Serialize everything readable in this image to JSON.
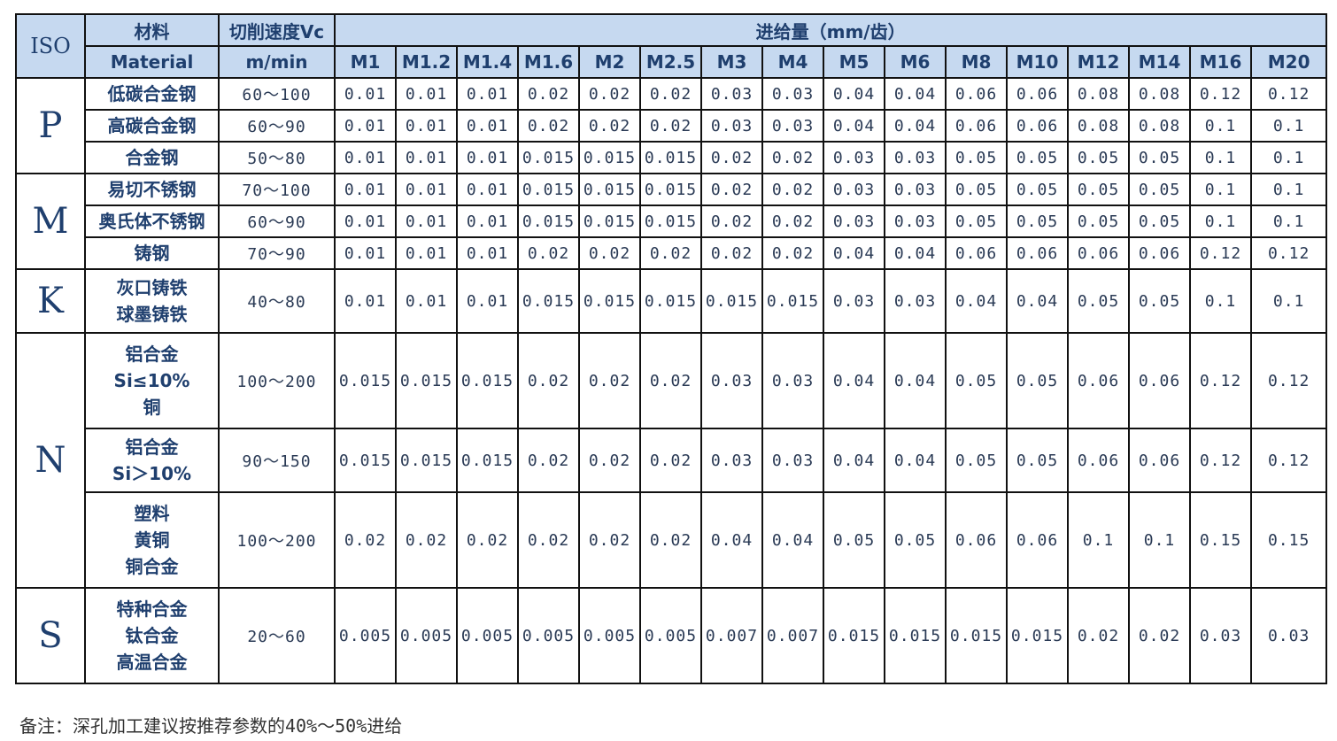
{
  "header": {
    "iso": "ISO",
    "material": [
      "材料",
      "Material"
    ],
    "vc": [
      "切削速度Vc",
      "m/min"
    ],
    "feed": "进给量（mm/齿）",
    "sizes": [
      "M1",
      "M1.2",
      "M1.4",
      "M1.6",
      "M2",
      "M2.5",
      "M3",
      "M4",
      "M5",
      "M6",
      "M8",
      "M10",
      "M12",
      "M14",
      "M16",
      "M20"
    ]
  },
  "groups": [
    {
      "iso": "P",
      "rows": [
        {
          "material": [
            "低碳合金钢"
          ],
          "vc": "60～100",
          "values": [
            0.01,
            0.01,
            0.01,
            0.02,
            0.02,
            0.02,
            0.03,
            0.03,
            0.04,
            0.04,
            0.06,
            0.06,
            0.08,
            0.08,
            0.12,
            0.12
          ]
        },
        {
          "material": [
            "高碳合金钢"
          ],
          "vc": "60～90",
          "values": [
            0.01,
            0.01,
            0.01,
            0.02,
            0.02,
            0.02,
            0.03,
            0.03,
            0.04,
            0.04,
            0.06,
            0.06,
            0.08,
            0.08,
            0.1,
            0.1
          ]
        },
        {
          "material": [
            "合金钢"
          ],
          "vc": "50～80",
          "values": [
            0.01,
            0.01,
            0.01,
            0.015,
            0.015,
            0.015,
            0.02,
            0.02,
            0.03,
            0.03,
            0.05,
            0.05,
            0.05,
            0.05,
            0.1,
            0.1
          ]
        }
      ]
    },
    {
      "iso": "M",
      "rows": [
        {
          "material": [
            "易切不锈钢"
          ],
          "vc": "70～100",
          "values": [
            0.01,
            0.01,
            0.01,
            0.015,
            0.015,
            0.015,
            0.02,
            0.02,
            0.03,
            0.03,
            0.05,
            0.05,
            0.05,
            0.05,
            0.1,
            0.1
          ]
        },
        {
          "material": [
            "奥氏体不锈钢"
          ],
          "vc": "60～90",
          "values": [
            0.01,
            0.01,
            0.01,
            0.015,
            0.015,
            0.015,
            0.02,
            0.02,
            0.03,
            0.03,
            0.05,
            0.05,
            0.05,
            0.05,
            0.1,
            0.1
          ]
        },
        {
          "material": [
            "铸钢"
          ],
          "vc": "70～90",
          "values": [
            0.01,
            0.01,
            0.01,
            0.02,
            0.02,
            0.02,
            0.02,
            0.02,
            0.04,
            0.04,
            0.06,
            0.06,
            0.06,
            0.06,
            0.12,
            0.12
          ]
        }
      ]
    },
    {
      "iso": "K",
      "rows": [
        {
          "material": [
            "灰口铸铁",
            "球墨铸铁"
          ],
          "vc": "40～80",
          "values": [
            0.01,
            0.01,
            0.01,
            0.015,
            0.015,
            0.015,
            0.015,
            0.015,
            0.03,
            0.03,
            0.04,
            0.04,
            0.05,
            0.05,
            0.1,
            0.1
          ]
        }
      ]
    },
    {
      "iso": "N",
      "rows": [
        {
          "material": [
            "铝合金",
            "Si≤10%",
            "铜"
          ],
          "vc": "100～200",
          "values": [
            0.015,
            0.015,
            0.015,
            0.02,
            0.02,
            0.02,
            0.03,
            0.03,
            0.04,
            0.04,
            0.05,
            0.05,
            0.06,
            0.06,
            0.12,
            0.12
          ]
        },
        {
          "material": [
            "铝合金",
            "Si＞10%"
          ],
          "vc": "90～150",
          "values": [
            0.015,
            0.015,
            0.015,
            0.02,
            0.02,
            0.02,
            0.03,
            0.03,
            0.04,
            0.04,
            0.05,
            0.05,
            0.06,
            0.06,
            0.12,
            0.12
          ]
        },
        {
          "material": [
            "塑料",
            "黄铜",
            "铜合金"
          ],
          "vc": "100～200",
          "values": [
            0.02,
            0.02,
            0.02,
            0.02,
            0.02,
            0.02,
            0.04,
            0.04,
            0.05,
            0.05,
            0.06,
            0.06,
            0.1,
            0.1,
            0.15,
            0.15
          ]
        }
      ]
    },
    {
      "iso": "S",
      "rows": [
        {
          "material": [
            "特种合金",
            "钛合金",
            "高温合金"
          ],
          "vc": "20～60",
          "values": [
            0.005,
            0.005,
            0.005,
            0.005,
            0.005,
            0.005,
            0.007,
            0.007,
            0.015,
            0.015,
            0.015,
            0.015,
            0.02,
            0.02,
            0.03,
            0.03
          ]
        }
      ]
    }
  ],
  "note": "备注：深孔加工建议按推荐参数的40%～50%进给"
}
